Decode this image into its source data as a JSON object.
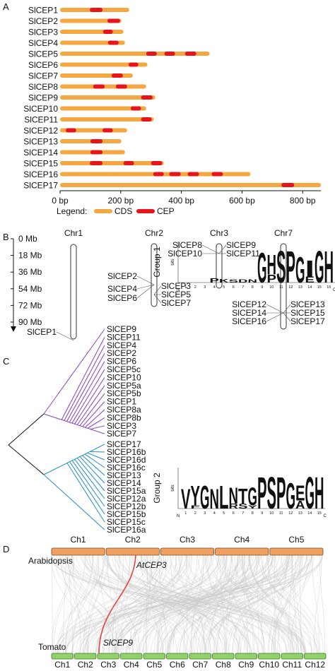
{
  "panel_a": {
    "label": "A",
    "xlim": [
      0,
      860
    ],
    "xticks": [
      {
        "value": 0,
        "label": "0 bp"
      },
      {
        "value": 200,
        "label": "200 bp"
      },
      {
        "value": 400,
        "label": "400 bp"
      },
      {
        "value": 600,
        "label": "600 bp"
      },
      {
        "value": 800,
        "label": "800 bp"
      }
    ],
    "cds_color": "#f5a742",
    "cep_color": "#e8141c",
    "genes": [
      {
        "name": "SlCEP1",
        "cds": 228,
        "cep": [
          [
            98,
            140
          ]
        ]
      },
      {
        "name": "SlCEP2",
        "cds": 202,
        "cep": [
          [
            156,
            198
          ]
        ]
      },
      {
        "name": "SlCEP3",
        "cds": 209,
        "cep": [
          [
            142,
            174
          ]
        ]
      },
      {
        "name": "SlCEP4",
        "cds": 214,
        "cep": [
          [
            158,
            193
          ]
        ]
      },
      {
        "name": "SlCEP5",
        "cds": 493,
        "cep": [
          [
            284,
            319
          ],
          [
            344,
            379
          ],
          [
            412,
            449
          ]
        ]
      },
      {
        "name": "SlCEP6",
        "cds": 288,
        "cep": [
          [
            226,
            258
          ]
        ]
      },
      {
        "name": "SlCEP7",
        "cds": 240,
        "cep": [
          [
            170,
            207
          ]
        ]
      },
      {
        "name": "SlCEP8",
        "cds": 284,
        "cep": [
          [
            109,
            147
          ],
          [
            184,
            221
          ]
        ]
      },
      {
        "name": "SlCEP9",
        "cds": 314,
        "cep": [
          [
            267,
            305
          ]
        ]
      },
      {
        "name": "SlCEP10",
        "cds": 284,
        "cep": [
          [
            233,
            267
          ]
        ]
      },
      {
        "name": "SlCEP11",
        "cds": 309,
        "cep": [
          [
            267,
            302
          ]
        ]
      },
      {
        "name": "SlCEP12",
        "cds": 221,
        "cep": [
          [
            19,
            53
          ],
          [
            140,
            174
          ]
        ]
      },
      {
        "name": "SlCEP13",
        "cds": 202,
        "cep": [
          [
            100,
            140
          ]
        ]
      },
      {
        "name": "SlCEP14",
        "cds": 214,
        "cep": [
          [
            100,
            140
          ]
        ]
      },
      {
        "name": "SlCEP15",
        "cds": 342,
        "cep": [
          [
            98,
            140
          ],
          [
            209,
            244
          ],
          [
            300,
            337
          ]
        ]
      },
      {
        "name": "SlCEP16",
        "cds": 628,
        "cep": [
          [
            307,
            342
          ],
          [
            360,
            398
          ],
          [
            421,
            458
          ],
          [
            500,
            537
          ]
        ]
      },
      {
        "name": "SlCEP17",
        "cds": 860,
        "cep": [
          [
            730,
            772
          ]
        ]
      }
    ],
    "legend_title": "Legend:",
    "legend": [
      "CDS",
      "CEP"
    ]
  },
  "panel_b": {
    "label": "B",
    "scale": [
      "0 Mb",
      "18 Mb",
      "36 Mb",
      "54 Mb",
      "72 Mb",
      "90 Mb"
    ],
    "chromosomes": [
      {
        "name": "Chr1",
        "left": [
          "SlCEP1"
        ],
        "right": []
      },
      {
        "name": "Chr2",
        "left": [
          "SlCEP2",
          "SlCEP4",
          "SlCEP6"
        ],
        "right": [
          "SlCEP3",
          "SlCEP5",
          "SlCEP7"
        ]
      },
      {
        "name": "Chr3",
        "left": [
          "SlCEP8",
          "SlCEP10"
        ],
        "right": [
          "SlCEP9",
          "SlCEP11"
        ]
      },
      {
        "name": "Chr7",
        "left": [
          "SlCEP12",
          "SlCEP14",
          "SlCEP16"
        ],
        "right": [
          "SlCEP13",
          "SlCEP15",
          "SlCEP17"
        ]
      }
    ]
  },
  "panel_c": {
    "label": "C",
    "bits_label": "bits",
    "letter_colors": {
      "G": "#22b322",
      "S": "#22b322",
      "T": "#22b322",
      "Y": "#22b322",
      "H": "#1f3fd6",
      "K": "#1f3fd6",
      "R": "#1f3fd6",
      "N": "#b03cc8",
      "D": "#e8141c",
      "E": "#e8141c",
      "P": "#111111",
      "V": "#111111",
      "L": "#111111",
      "I": "#111111",
      "A": "#111111",
      "F": "#111111"
    },
    "groups": [
      {
        "name": "Group 1",
        "color": "#8a3fbf",
        "leaves": [
          "SlCEP9",
          "SlCEP11",
          "SlCEP4",
          "SlCEP2",
          "SlCEP6",
          "SlCEP5c",
          "SlCEP10",
          "SlCEP5a",
          "SlCEP5b",
          "SlCEP1",
          "SlCEP8a",
          "SlCEP8b",
          "SlCEP3",
          "SlCEP7"
        ],
        "positions": [
          1,
          2,
          3,
          4,
          5,
          6,
          7,
          8,
          9,
          10,
          11,
          12,
          13,
          14,
          15,
          16
        ],
        "logo": [
          [],
          [],
          [],
          [
            {
              "letter": "P",
              "bits": 0.4
            }
          ],
          [
            {
              "letter": "K",
              "bits": 0.35
            }
          ],
          [
            {
              "letter": "S",
              "bits": 0.3
            }
          ],
          [
            {
              "letter": "D",
              "bits": 0.3
            }
          ],
          [
            {
              "letter": "N",
              "bits": 0.3
            }
          ],
          [
            {
              "letter": "G",
              "bits": 3.0
            }
          ],
          [
            {
              "letter": "P",
              "bits": 0.8
            },
            {
              "letter": "H",
              "bits": 2.0
            }
          ],
          [
            {
              "letter": "S",
              "bits": 3.2
            }
          ],
          [
            {
              "letter": "P",
              "bits": 3.2
            }
          ],
          [
            {
              "letter": "G",
              "bits": 2.6
            }
          ],
          [
            {
              "letter": "E",
              "bits": 0.6
            },
            {
              "letter": "I",
              "bits": 1.6
            }
          ],
          [
            {
              "letter": "G",
              "bits": 3.2
            }
          ],
          [
            {
              "letter": "H",
              "bits": 3.2
            }
          ]
        ]
      },
      {
        "name": "Group 2",
        "color": "#1f8fc8",
        "leaves": [
          "SlCEP17",
          "SlCEP16b",
          "SlCEP16d",
          "SlCEP16c",
          "SlCEP13",
          "SlCEP14",
          "SlCEP15a",
          "SlCEP12a",
          "SlCEP12b",
          "SlCEP15b",
          "SlCEP15c",
          "SlCEP16a"
        ],
        "positions": [
          1,
          2,
          3,
          4,
          5,
          6,
          7,
          8,
          9,
          10,
          11,
          12,
          13,
          14,
          15
        ],
        "logo": [
          [
            {
              "letter": "V",
              "bits": 2.0
            }
          ],
          [
            {
              "letter": "F",
              "bits": 0.3
            },
            {
              "letter": "Y",
              "bits": 2.0
            }
          ],
          [
            {
              "letter": "G",
              "bits": 2.3
            }
          ],
          [
            {
              "letter": "N",
              "bits": 2.0
            }
          ],
          [
            {
              "letter": "L",
              "bits": 2.3
            }
          ],
          [
            {
              "letter": "R",
              "bits": 0.5
            },
            {
              "letter": "N",
              "bits": 1.6
            }
          ],
          [
            {
              "letter": "S",
              "bits": 0.5
            },
            {
              "letter": "T",
              "bits": 1.5
            }
          ],
          [
            {
              "letter": "Y",
              "bits": 0.3
            },
            {
              "letter": "G",
              "bits": 1.8
            }
          ],
          [
            {
              "letter": "P",
              "bits": 3.2
            }
          ],
          [
            {
              "letter": "S",
              "bits": 3.2
            }
          ],
          [
            {
              "letter": "P",
              "bits": 3.2
            }
          ],
          [
            {
              "letter": "G",
              "bits": 2.6
            }
          ],
          [
            {
              "letter": "A",
              "bits": 0.8
            },
            {
              "letter": "E",
              "bits": 1.5
            }
          ],
          [
            {
              "letter": "G",
              "bits": 3.2
            }
          ],
          [
            {
              "letter": "H",
              "bits": 3.2
            }
          ]
        ]
      }
    ],
    "n_label": "N",
    "c_label": "C"
  },
  "panel_d": {
    "label": "D",
    "top_species": "Arabidopsis",
    "top_chromosomes": [
      "Ch1",
      "Ch2",
      "Ch3",
      "Ch4",
      "Ch5"
    ],
    "top_color": "#f0a060",
    "bottom_species": "Tomato",
    "bottom_chromosomes": [
      "Ch1",
      "Ch2",
      "Ch3",
      "Ch4",
      "Ch5",
      "Ch6",
      "Ch7",
      "Ch8",
      "Ch9",
      "Ch10",
      "Ch11",
      "Ch12"
    ],
    "bottom_color": "#8fd26a",
    "top_gene": "AtCEP3",
    "bottom_gene": "SlCEP9",
    "link_color": "#e8413a"
  }
}
